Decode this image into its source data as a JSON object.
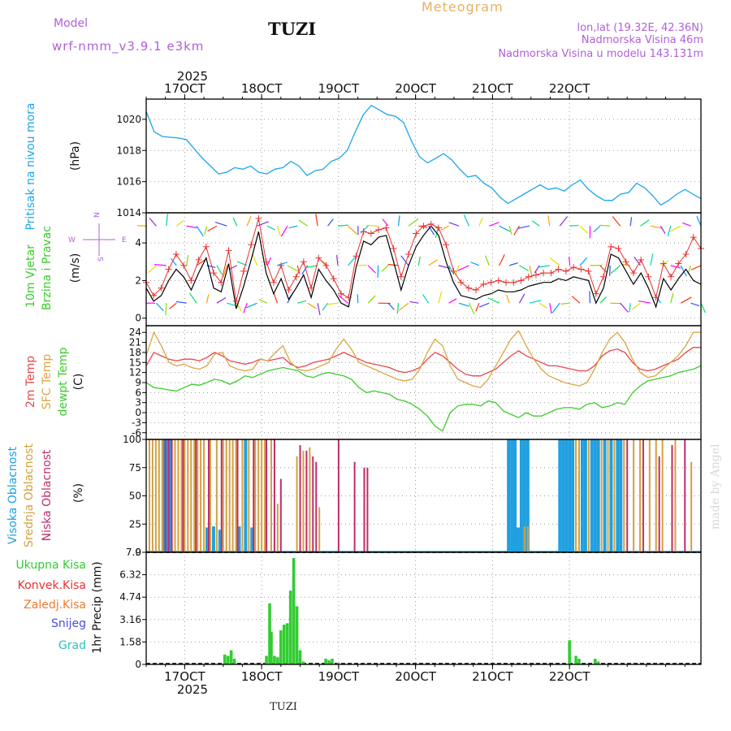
{
  "header": {
    "model_label": "Model",
    "model_value": "wrf-nmm_v3.9.1  e3km",
    "station": "TUZI",
    "meteogram": "Meteogram",
    "coords": "lon,lat (19.32E, 42.36N)",
    "elevation": "Nadmorska Visina 46m",
    "model_elevation": "Nadmorska Visina u modelu 143.131m",
    "year": "2025",
    "footer_station": "TUZI",
    "credit": "made by Angel"
  },
  "colors": {
    "pressure": "#1ca6ea",
    "temp2m": "#e8474c",
    "sfc": "#d9a640",
    "dewpt": "#3ccc2c",
    "high": "#20a0e0",
    "mid": "#d4a040",
    "low": "#c02c6c",
    "precip": "#33cc33",
    "wind_gust": "#e83030",
    "label_purple": "#b060d8"
  },
  "chart_data": [
    {
      "type": "line",
      "panel": "pressure",
      "ylabel_left": "Pritisak na nivou mora",
      "ylabel_unit": "(hPa)",
      "yticks": [
        "1020",
        "1018",
        "1016",
        "1014"
      ],
      "ylim": [
        1014,
        1021.3
      ],
      "xlim": [
        0,
        173
      ],
      "xticks_top": [
        "17OCT",
        "18OCT",
        "19OCT",
        "20OCT",
        "21OCT",
        "22OCT"
      ],
      "xtick_hours": [
        12,
        36,
        60,
        84,
        108,
        132
      ],
      "values": [
        1020.5,
        1019.2,
        1018.9,
        1018.85,
        1018.8,
        1018.7,
        1018.1,
        1017.5,
        1017.0,
        1016.5,
        1016.6,
        1016.9,
        1016.8,
        1017.0,
        1016.6,
        1016.5,
        1016.8,
        1016.9,
        1017.3,
        1017.0,
        1016.4,
        1016.7,
        1016.8,
        1017.3,
        1017.5,
        1018.0,
        1019.2,
        1020.3,
        1020.9,
        1020.6,
        1020.3,
        1020.2,
        1019.8,
        1018.6,
        1017.6,
        1017.2,
        1017.5,
        1017.8,
        1017.4,
        1016.8,
        1016.3,
        1016.4,
        1015.9,
        1015.6,
        1015.0,
        1014.6,
        1014.9,
        1015.2,
        1015.5,
        1015.8,
        1015.5,
        1015.6,
        1015.4,
        1015.8,
        1016.1,
        1015.5,
        1015.1,
        1014.8,
        1014.8,
        1015.2,
        1015.3,
        1015.9,
        1015.6,
        1015.1,
        1014.5,
        1014.8,
        1015.2,
        1015.5,
        1015.2,
        1014.9
      ]
    },
    {
      "type": "line",
      "panel": "wind",
      "ylabel_left": [
        "10m Vjetar",
        "Brzina i Pravac"
      ],
      "ylabel_unit": "(m/s)",
      "compass": [
        "N",
        "W",
        "E",
        "S"
      ],
      "yticks": [
        "4",
        "2",
        "0"
      ],
      "ylim": [
        -0.4,
        5.6
      ],
      "barb_rows": [
        0.8,
        2.8,
        4.9
      ],
      "series": [
        {
          "name": "speed",
          "values": [
            1.6,
            0.9,
            1.2,
            2.0,
            2.6,
            2.2,
            1.5,
            2.4,
            3.2,
            1.6,
            1.4,
            2.9,
            0.5,
            1.7,
            3.1,
            4.6,
            2.4,
            1.3,
            2.1,
            1.0,
            1.6,
            2.3,
            1.1,
            2.6,
            2.0,
            1.5,
            0.8,
            0.6,
            2.7,
            4.1,
            3.9,
            4.3,
            4.4,
            3.0,
            1.5,
            2.8,
            3.8,
            4.4,
            4.9,
            4.4,
            3.0,
            1.9,
            1.2,
            1.1,
            1.0,
            1.2,
            1.3,
            1.5,
            1.4,
            1.4,
            1.5,
            1.7,
            1.8,
            1.9,
            1.9,
            2.1,
            2.0,
            2.2,
            2.1,
            2.0,
            0.8,
            1.6,
            3.4,
            3.2,
            2.5,
            1.8,
            2.4,
            1.6,
            0.6,
            2.1,
            1.5,
            2.1,
            2.6,
            2.0,
            1.8
          ]
        },
        {
          "name": "gust",
          "values": [
            1.9,
            1.2,
            1.6,
            2.6,
            3.4,
            2.8,
            2.0,
            3.1,
            3.8,
            2.4,
            1.9,
            3.6,
            0.9,
            2.5,
            3.9,
            5.3,
            3.0,
            1.9,
            2.8,
            1.5,
            2.2,
            3.0,
            1.6,
            3.2,
            2.8,
            2.1,
            1.3,
            1.1,
            3.3,
            4.6,
            4.5,
            4.7,
            4.8,
            3.7,
            2.2,
            3.4,
            4.5,
            4.9,
            5.0,
            4.8,
            3.9,
            2.5,
            1.9,
            1.6,
            1.5,
            1.8,
            1.9,
            2.0,
            1.9,
            1.9,
            2.0,
            2.2,
            2.3,
            2.4,
            2.4,
            2.6,
            2.5,
            2.7,
            2.6,
            2.5,
            1.3,
            2.2,
            3.8,
            3.7,
            3.0,
            2.4,
            3.1,
            2.2,
            1.1,
            2.9,
            2.2,
            2.9,
            3.4,
            4.3,
            3.7
          ]
        }
      ]
    },
    {
      "type": "line",
      "panel": "temperature",
      "ylabel_left": [
        "2m Temp",
        "SFC Temp",
        "dewpt Temp"
      ],
      "ylabel_unit": "(C)",
      "yticks": [
        "24",
        "21",
        "18",
        "15",
        "12",
        "9",
        "6",
        "3",
        "0",
        "-3",
        "-6"
      ],
      "ylim": [
        -8,
        26
      ],
      "series": [
        {
          "name": "2m Temp",
          "values": [
            14,
            18,
            17,
            16,
            15.5,
            16,
            16,
            15.5,
            16.5,
            18,
            17,
            15.5,
            15,
            14.5,
            15,
            16,
            15.5,
            16,
            16.5,
            14.5,
            13.5,
            14,
            15,
            15.5,
            16,
            17,
            18,
            17,
            16,
            15,
            14.5,
            14,
            13.5,
            12.5,
            12,
            12.5,
            13.5,
            16,
            18,
            17,
            15,
            13,
            11.5,
            11,
            11,
            12,
            13,
            15,
            17,
            18.5,
            17,
            16,
            15,
            14,
            14,
            13.5,
            13,
            12.5,
            12.5,
            14,
            17,
            18.5,
            19,
            18,
            15,
            13,
            12.5,
            13,
            14,
            15,
            16,
            18,
            19.5,
            19.5
          ]
        },
        {
          "name": "SFC Temp",
          "values": [
            17,
            24,
            20,
            15,
            14,
            14.5,
            13.5,
            13,
            14,
            17.5,
            18,
            14,
            13,
            12.5,
            13,
            16,
            15.5,
            18,
            20,
            15,
            13,
            12.5,
            13,
            14,
            15,
            19,
            22,
            19,
            15,
            14,
            13,
            12,
            11,
            10,
            9.5,
            10,
            13,
            18,
            22,
            20,
            14,
            10,
            9,
            8,
            7.5,
            10,
            14,
            18,
            22,
            24.5,
            20,
            16,
            13,
            11,
            10,
            9,
            8.5,
            8,
            9,
            13,
            18,
            22,
            24,
            21,
            16,
            12,
            10.5,
            11,
            13,
            15,
            17,
            20,
            24,
            24
          ]
        },
        {
          "name": "dewpt Temp",
          "values": [
            9,
            7.5,
            7.2,
            6.8,
            6.5,
            7.5,
            8.5,
            8.2,
            9,
            10,
            9.5,
            8.5,
            9.5,
            11,
            10.5,
            11.5,
            12.5,
            13,
            13.5,
            13,
            12.5,
            11,
            10.5,
            11.5,
            12,
            11.5,
            11,
            10,
            7.5,
            6,
            6.5,
            6,
            5.5,
            4,
            3.5,
            2.5,
            1,
            -1,
            -4,
            -5.5,
            0,
            2,
            2.5,
            2.5,
            2,
            3.5,
            3,
            0.5,
            -0.5,
            -1.5,
            0,
            -1,
            -1,
            0,
            1,
            1.5,
            1.5,
            1,
            2.5,
            3,
            1.5,
            2,
            3,
            2.5,
            6,
            8,
            9.5,
            10,
            10.5,
            11,
            12,
            12.5,
            13,
            14
          ]
        }
      ]
    },
    {
      "type": "bar",
      "panel": "cloud",
      "ylabel_left": [
        "Visoka Oblacnost",
        "Srednja Oblacnost",
        "Niska Oblacnost"
      ],
      "ylabel_unit": "(%)",
      "yticks": [
        "100",
        "75",
        "50",
        "25",
        "0"
      ],
      "ylim": [
        0,
        100
      ],
      "series": [
        {
          "name": "Visoka",
          "bars": [
            [
              5.5,
              100
            ],
            [
              6.5,
              100
            ],
            [
              7.6,
              100
            ],
            [
              19,
              22
            ],
            [
              21,
              23
            ],
            [
              23,
              20
            ],
            [
              29,
              23
            ],
            [
              31,
              100
            ],
            [
              33,
              22
            ],
            [
              113,
              100
            ],
            [
              114,
              100
            ],
            [
              115,
              100
            ],
            [
              116,
              22
            ],
            [
              117,
              100
            ],
            [
              118,
              100
            ],
            [
              119,
              100
            ],
            [
              129,
              100
            ],
            [
              130,
              100
            ],
            [
              131,
              100
            ],
            [
              132,
              100
            ],
            [
              133,
              100
            ],
            [
              136,
              100
            ],
            [
              137,
              100
            ],
            [
              139,
              100
            ],
            [
              140,
              100
            ],
            [
              141,
              100
            ],
            [
              143,
              100
            ],
            [
              145,
              100
            ],
            [
              147,
              100
            ],
            [
              148,
              100
            ]
          ]
        },
        {
          "name": "Srednja",
          "bars": [
            [
              1,
              100
            ],
            [
              2,
              100
            ],
            [
              3,
              100
            ],
            [
              4,
              100
            ],
            [
              5,
              100
            ],
            [
              9,
              100
            ],
            [
              10,
              100
            ],
            [
              11,
              100
            ],
            [
              12,
              100
            ],
            [
              13,
              100
            ],
            [
              14,
              100
            ],
            [
              15,
              100
            ],
            [
              16,
              100
            ],
            [
              17,
              100
            ],
            [
              18,
              100
            ],
            [
              20,
              100
            ],
            [
              22,
              100
            ],
            [
              24,
              100
            ],
            [
              25,
              100
            ],
            [
              26,
              100
            ],
            [
              27,
              100
            ],
            [
              28,
              100
            ],
            [
              30,
              100
            ],
            [
              32,
              100
            ],
            [
              34,
              100
            ],
            [
              35,
              100
            ],
            [
              36,
              100
            ],
            [
              37,
              100
            ],
            [
              39,
              100
            ],
            [
              41,
              43
            ],
            [
              47,
              85
            ],
            [
              49,
              90
            ],
            [
              51,
              93
            ],
            [
              54,
              40
            ],
            [
              118,
              23
            ],
            [
              119,
              23
            ],
            [
              134,
              100
            ],
            [
              135,
              100
            ],
            [
              138,
              100
            ],
            [
              142,
              100
            ],
            [
              144,
              100
            ],
            [
              146,
              100
            ],
            [
              149,
              100
            ],
            [
              152,
              100
            ],
            [
              154,
              100
            ],
            [
              157,
              100
            ],
            [
              159,
              100
            ],
            [
              161,
              100
            ],
            [
              165,
              100
            ],
            [
              170,
              80
            ]
          ]
        },
        {
          "name": "Niska",
          "bars": [
            [
              6,
              100
            ],
            [
              7,
              100
            ],
            [
              8,
              100
            ],
            [
              11.5,
              100
            ],
            [
              15.5,
              100
            ],
            [
              19.5,
              100
            ],
            [
              23.5,
              100
            ],
            [
              28.5,
              100
            ],
            [
              33.5,
              100
            ],
            [
              37.5,
              100
            ],
            [
              40,
              100
            ],
            [
              42,
              65
            ],
            [
              48,
              95
            ],
            [
              50,
              90
            ],
            [
              52,
              85
            ],
            [
              53,
              80
            ],
            [
              60,
              100
            ],
            [
              65,
              80
            ],
            [
              68,
              75
            ],
            [
              69,
              75
            ],
            [
              150,
              100
            ],
            [
              155,
              100
            ],
            [
              160,
              85
            ],
            [
              164,
              95
            ],
            [
              168,
              100
            ]
          ]
        }
      ]
    },
    {
      "type": "bar",
      "panel": "precip",
      "ylabel_left": [
        "Ukupna Kisa",
        "Konvek.Kisa",
        "Zaledj.Kisa",
        "Snijeg",
        "Grad"
      ],
      "ylabel_unit": "1hr Precip (mm)",
      "yticks": [
        "7.9",
        "6.32",
        "4.74",
        "3.16",
        "1.58",
        "0"
      ],
      "ylim": [
        0,
        7.9
      ],
      "xticks_bottom": [
        "17OCT",
        "18OCT",
        "19OCT",
        "20OCT",
        "21OCT",
        "22OCT"
      ],
      "bars": [
        [
          24.5,
          0.7
        ],
        [
          25.5,
          0.6
        ],
        [
          26.5,
          1.0
        ],
        [
          27.5,
          0.4
        ],
        [
          37.5,
          0.6
        ],
        [
          38.5,
          4.3
        ],
        [
          39,
          2.3
        ],
        [
          40,
          0.6
        ],
        [
          41,
          0.5
        ],
        [
          42,
          2.4
        ],
        [
          43,
          2.8
        ],
        [
          44,
          2.9
        ],
        [
          45,
          5.2
        ],
        [
          46,
          7.5
        ],
        [
          47,
          4.1
        ],
        [
          48,
          1.0
        ],
        [
          49,
          0.2
        ],
        [
          56,
          0.4
        ],
        [
          57,
          0.3
        ],
        [
          58,
          0.4
        ],
        [
          60,
          0.1
        ],
        [
          132,
          1.7
        ],
        [
          134,
          0.6
        ],
        [
          135,
          0.4
        ],
        [
          140,
          0.4
        ],
        [
          141,
          0.2
        ]
      ]
    }
  ]
}
